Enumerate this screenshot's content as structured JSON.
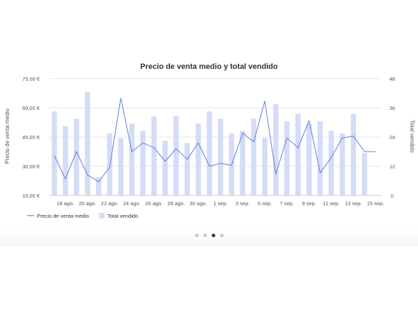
{
  "chart_data": {
    "type": "bar+line",
    "title": "Precio de venta medio y total vendido",
    "xlabel": "",
    "ylabel_left": "Precio de venta medio",
    "ylabel_right": "Total vendido",
    "ylim_left": [
      15,
      75
    ],
    "ylim_right": [
      0,
      48
    ],
    "yticks_left": [
      "15,00 €",
      "30,00 €",
      "45,00 €",
      "60,00 €",
      "75,00 €"
    ],
    "yticks_right": [
      "0",
      "12",
      "24",
      "36",
      "48"
    ],
    "x_tick_labels": [
      "18 ago.",
      "20 ago.",
      "22 ago.",
      "24 ago.",
      "26 ago.",
      "28 ago.",
      "30 ago.",
      "1 sep.",
      "3 sep.",
      "5 sep.",
      "7 sep.",
      "9 sep.",
      "11 sep.",
      "13 sep.",
      "15 sep."
    ],
    "categories": [
      "17 ago.",
      "18 ago.",
      "19 ago.",
      "20 ago.",
      "21 ago.",
      "22 ago.",
      "23 ago.",
      "24 ago.",
      "25 ago.",
      "26 ago.",
      "27 ago.",
      "28 ago.",
      "29 ago.",
      "30 ago.",
      "31 ago.",
      "1 sep.",
      "2 sep.",
      "3 sep.",
      "4 sep.",
      "5 sep.",
      "6 sep.",
      "7 sep.",
      "8 sep.",
      "9 sep.",
      "10 sep.",
      "11 sep.",
      "12 sep.",
      "13 sep.",
      "14 sep.",
      "15 sep."
    ],
    "series": [
      {
        "name": "Total vendido",
        "type": "bar",
        "axis": "right",
        "color": "#d4dcf6",
        "values": [
          34.5,
          28.5,
          31.5,
          42.5,
          7.5,
          25.5,
          23.5,
          29.5,
          26.5,
          32.5,
          22.5,
          32.5,
          21.5,
          29.5,
          34.5,
          31.5,
          25.5,
          26.5,
          31.5,
          23.5,
          37.5,
          30.5,
          33.5,
          29.5,
          30.5,
          26.5,
          25.5,
          33.5,
          17.5,
          null
        ]
      },
      {
        "name": "Precio de venta medio",
        "type": "line",
        "axis": "left",
        "color": "#5b7fdc",
        "values": [
          35.5,
          23.5,
          37.5,
          25.5,
          22.0,
          29.5,
          65.0,
          37.5,
          42.0,
          39.5,
          32.5,
          39.0,
          33.5,
          42.0,
          30.0,
          31.5,
          30.5,
          47.0,
          42.5,
          63.5,
          26.0,
          44.5,
          39.5,
          53.5,
          26.5,
          34.5,
          44.5,
          45.5,
          37.5,
          37.5
        ]
      }
    ],
    "legend_position": "bottom-left",
    "grid": true
  },
  "legend": {
    "line_label": "Precio de venta medio",
    "bar_label": "Total vendido"
  },
  "pager": {
    "count": 4,
    "active_index": 2
  }
}
